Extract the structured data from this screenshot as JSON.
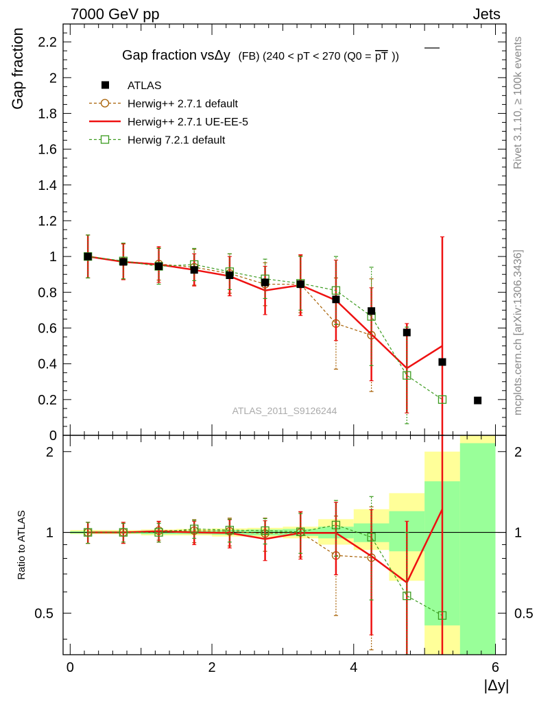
{
  "header": {
    "left": "7000 GeV pp",
    "right": "Jets"
  },
  "side_labels": {
    "rivet": "Rivet 3.1.10, ≥ 100k events",
    "mcplots": "mcplots.cern.ch [arXiv:1306.3436]"
  },
  "chart_data": {
    "type": "line",
    "title": {
      "main": "Gap fraction vsΔy",
      "suffix": "(FB) (240 < pT < 270 (Q0 =",
      "overline": "pT",
      "close": "))"
    },
    "watermark": "ATLAS_2011_S9126244",
    "xlabel": "|Δy|",
    "ylabel": "Gap fraction",
    "ratio_ylabel": "Ratio to ATLAS",
    "xlim": [
      -0.1,
      6.15
    ],
    "ylim": [
      0,
      2.3
    ],
    "ratio_ylim": [
      0.35,
      2.3
    ],
    "ratio_log_scale": true,
    "grid": false,
    "legend_position": "top-left",
    "x_ticks": [
      0,
      2,
      4,
      6
    ],
    "y_ticks": [
      0,
      0.2,
      0.4,
      0.6,
      0.8,
      1,
      1.2,
      1.4,
      1.6,
      1.8,
      2,
      2.2
    ],
    "ratio_y_ticks": [
      0.5,
      1,
      2
    ],
    "x": [
      0.25,
      0.75,
      1.25,
      1.75,
      2.25,
      2.75,
      3.25,
      3.75,
      4.25,
      4.75,
      5.25,
      5.75
    ],
    "series": [
      {
        "name": "ATLAS",
        "style": "data",
        "color": "#000000",
        "values": [
          1.0,
          0.97,
          0.945,
          0.925,
          0.895,
          0.855,
          0.845,
          0.76,
          0.695,
          0.575,
          0.41,
          0.195
        ]
      },
      {
        "name": "Herwig++ 2.7.1 default",
        "style": "dashed-circle",
        "color": "#a65e00",
        "values": [
          1.0,
          0.972,
          0.958,
          0.94,
          0.905,
          0.845,
          0.845,
          0.625,
          0.56,
          null,
          null,
          null
        ],
        "errors": [
          0.12,
          0.1,
          0.09,
          0.1,
          0.11,
          0.12,
          0.16,
          0.255,
          0.315,
          null,
          null,
          null
        ],
        "ratio": [
          1.0,
          1.0,
          1.015,
          1.015,
          1.01,
          0.99,
          1.0,
          0.82,
          0.805,
          null,
          null,
          null
        ],
        "ratio_errors": [
          0.09,
          0.09,
          0.08,
          0.1,
          0.12,
          0.14,
          0.19,
          0.33,
          0.44,
          null,
          null,
          null
        ]
      },
      {
        "name": "Herwig++ 2.7.1 UE-EE-5",
        "style": "solid",
        "color": "#ee1111",
        "values": [
          1.0,
          0.97,
          0.955,
          0.925,
          0.89,
          0.81,
          0.84,
          0.755,
          0.565,
          0.375,
          0.5,
          null
        ],
        "errors": [
          0.12,
          0.1,
          0.1,
          0.09,
          0.11,
          0.135,
          0.17,
          0.225,
          0.26,
          0.25,
          0.61,
          null
        ],
        "ratio": [
          1.0,
          1.0,
          1.01,
          1.0,
          0.995,
          0.945,
          0.995,
          0.995,
          0.815,
          0.65,
          1.22,
          null
        ],
        "ratio_errors": [
          0.09,
          0.09,
          0.09,
          0.1,
          0.12,
          0.16,
          0.2,
          0.3,
          0.4,
          0.45,
          1.1,
          null
        ]
      },
      {
        "name": "Herwig 7.2.1 default",
        "style": "dashed-square",
        "color": "#3a9a1e",
        "values": [
          1.0,
          0.975,
          0.945,
          0.955,
          0.915,
          0.875,
          0.85,
          0.81,
          0.665,
          0.335,
          0.2,
          null
        ],
        "errors": [
          0.12,
          0.1,
          0.1,
          0.09,
          0.1,
          0.11,
          0.15,
          0.19,
          0.275,
          0.27,
          null,
          null
        ],
        "ratio": [
          1.0,
          1.0,
          1.0,
          1.03,
          1.02,
          1.015,
          1.005,
          1.065,
          0.96,
          0.58,
          0.49,
          null
        ],
        "ratio_errors": [
          0.09,
          0.08,
          0.08,
          0.08,
          0.1,
          0.11,
          0.17,
          0.25,
          0.4,
          0.42,
          null,
          null
        ]
      }
    ],
    "ratio_bands": {
      "colors": {
        "inner": "#99ff99",
        "outer": "#ffff99"
      },
      "x_edges": [
        0,
        0.5,
        1,
        1.5,
        2,
        2.5,
        3,
        3.5,
        4,
        4.5,
        5,
        5.5,
        6
      ],
      "inner": [
        [
          0.99,
          1.01
        ],
        [
          0.99,
          1.01
        ],
        [
          0.985,
          1.015
        ],
        [
          0.985,
          1.015
        ],
        [
          0.98,
          1.02
        ],
        [
          0.975,
          1.025
        ],
        [
          0.97,
          1.03
        ],
        [
          0.95,
          1.05
        ],
        [
          0.92,
          1.08
        ],
        [
          0.85,
          1.2
        ],
        [
          0.45,
          1.55
        ],
        [
          0.35,
          2.15
        ]
      ],
      "outer": [
        [
          0.985,
          1.02
        ],
        [
          0.985,
          1.02
        ],
        [
          0.975,
          1.025
        ],
        [
          0.975,
          1.03
        ],
        [
          0.965,
          1.035
        ],
        [
          0.96,
          1.04
        ],
        [
          0.95,
          1.05
        ],
        [
          0.9,
          1.12
        ],
        [
          0.86,
          1.22
        ],
        [
          0.66,
          1.4
        ],
        [
          0.35,
          2.0
        ],
        [
          0.35,
          2.3
        ]
      ]
    }
  }
}
